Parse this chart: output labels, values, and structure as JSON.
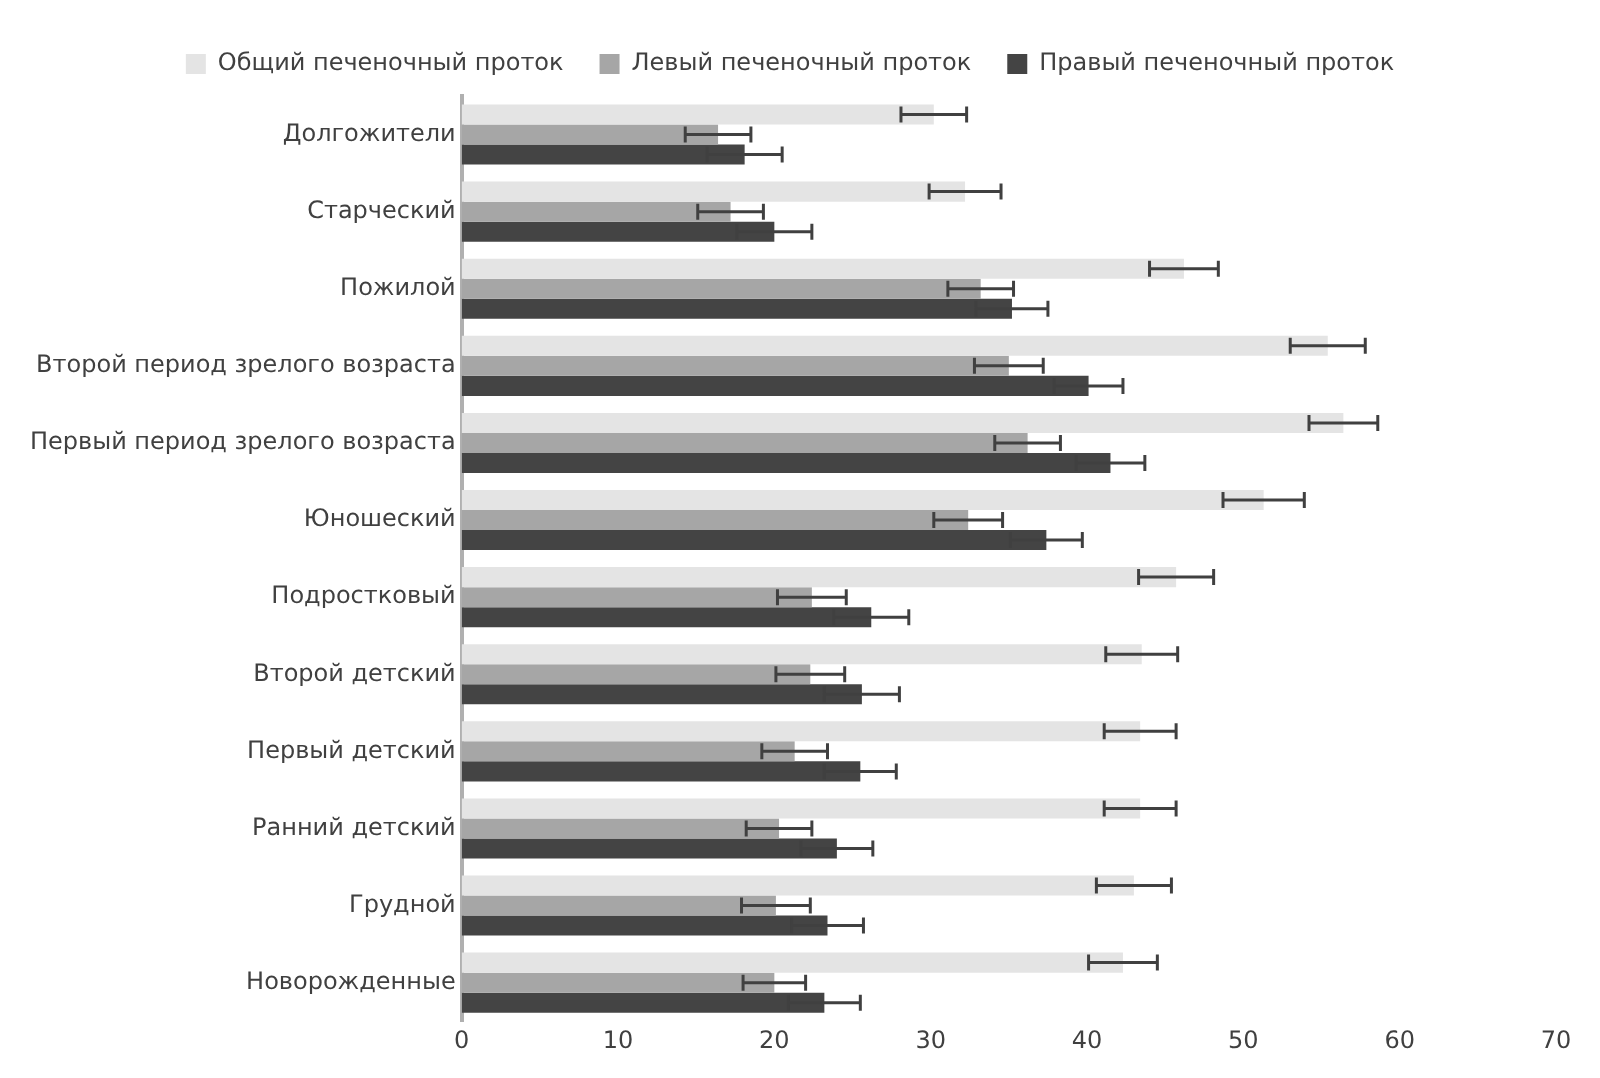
{
  "chart_data": {
    "type": "bar",
    "orientation": "horizontal",
    "categories": [
      "Долгожители",
      "Старческий",
      "Пожилой",
      "Второй период зрелого возраста",
      "Первый период зрелого возраста",
      "Юношеский",
      "Подростковый",
      "Второй детский",
      "Первый детский",
      "Ранний детский",
      "Грудной",
      "Новорожденные"
    ],
    "series": [
      {
        "name": "Общий печеночный проток",
        "color": "#e4e4e4",
        "values": [
          30.2,
          32.2,
          46.2,
          55.4,
          56.4,
          51.3,
          45.7,
          43.5,
          43.4,
          43.4,
          43.0,
          42.3
        ],
        "errors": [
          2.1,
          2.3,
          2.2,
          2.4,
          2.2,
          2.6,
          2.4,
          2.3,
          2.3,
          2.3,
          2.4,
          2.2
        ]
      },
      {
        "name": "Левый печеночный проток",
        "color": "#a6a6a6",
        "values": [
          16.4,
          17.2,
          33.2,
          35.0,
          36.2,
          32.4,
          22.4,
          22.3,
          21.3,
          20.3,
          20.1,
          20.0
        ],
        "errors": [
          2.1,
          2.1,
          2.1,
          2.2,
          2.1,
          2.2,
          2.2,
          2.2,
          2.1,
          2.1,
          2.2,
          2.0
        ]
      },
      {
        "name": "Правый печеночный проток",
        "color": "#444444",
        "values": [
          18.1,
          20.0,
          35.2,
          40.1,
          41.5,
          37.4,
          26.2,
          25.6,
          25.5,
          24.0,
          23.4,
          23.2
        ],
        "errors": [
          2.4,
          2.4,
          2.3,
          2.2,
          2.2,
          2.3,
          2.4,
          2.4,
          2.3,
          2.3,
          2.3,
          2.3
        ]
      }
    ],
    "xlim": [
      0,
      70
    ],
    "xticks": [
      0,
      10,
      20,
      30,
      40,
      50,
      60,
      70
    ],
    "grid": false,
    "legend": "top"
  }
}
